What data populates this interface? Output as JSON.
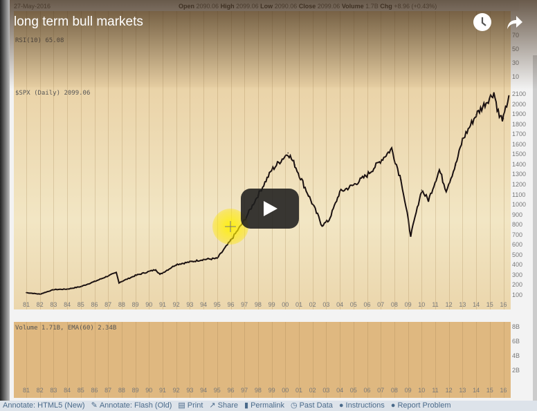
{
  "video": {
    "title": "long term bull markets",
    "icons": [
      "clock-icon",
      "share-icon",
      "play-icon"
    ]
  },
  "chart_header": {
    "date": "27-May-2016",
    "open_label": "Open",
    "open": "2090.06",
    "high_label": "High",
    "high": "2099.06",
    "low_label": "Low",
    "low": "2090.06",
    "close_label": "Close",
    "close": "2099.06",
    "volume_label": "Volume",
    "volume": "1.7B",
    "chg_label": "Chg",
    "chg": "+8.96 (+0.43%)"
  },
  "panels": {
    "rsi": "RSI(10) 65.08",
    "price": "$SPX (Daily) 2099.06",
    "volume": "Volume 1.71B, EMA(60) 2.34B"
  },
  "rsi_ticks": [
    "70",
    "50",
    "30",
    "10"
  ],
  "volume_ticks": [
    "8B",
    "6B",
    "4B",
    "2B"
  ],
  "chart_data": {
    "type": "line",
    "title": "$SPX (Daily) 2099.06",
    "x_ticks": [
      "81",
      "82",
      "83",
      "84",
      "85",
      "86",
      "87",
      "88",
      "89",
      "90",
      "91",
      "92",
      "93",
      "94",
      "95",
      "96",
      "97",
      "98",
      "99",
      "00",
      "01",
      "02",
      "03",
      "04",
      "05",
      "06",
      "07",
      "08",
      "09",
      "10",
      "11",
      "12",
      "13",
      "14",
      "15",
      "16"
    ],
    "y_ticks": [
      "2100",
      "2000",
      "1900",
      "1800",
      "1700",
      "1600",
      "1500",
      "1400",
      "1300",
      "1200",
      "1100",
      "1000",
      "900",
      "800",
      "700",
      "600",
      "500",
      "400",
      "300",
      "200",
      "100"
    ],
    "ylim": [
      100,
      2100
    ],
    "x": [
      1981,
      1982,
      1983,
      1984,
      1985,
      1986,
      1987.6,
      1987.8,
      1989,
      1990.5,
      1990.8,
      1992,
      1994,
      1995,
      1996,
      1997,
      1998,
      1999,
      2000.2,
      2000.7,
      2001.7,
      2002.7,
      2003.2,
      2004,
      2005,
      2006,
      2007.8,
      2008.5,
      2009.2,
      2010,
      2010.5,
      2011.3,
      2011.8,
      2012.5,
      2013,
      2014,
      2015.3,
      2015.7,
      2016,
      2016.4
    ],
    "values": [
      130,
      115,
      160,
      165,
      190,
      240,
      330,
      230,
      300,
      360,
      310,
      410,
      460,
      470,
      650,
      850,
      1100,
      1350,
      1520,
      1400,
      1100,
      800,
      850,
      1130,
      1200,
      1300,
      1560,
      1250,
      700,
      1150,
      1050,
      1350,
      1150,
      1400,
      1650,
      1900,
      2120,
      1880,
      1860,
      2090
    ],
    "grid": true,
    "color": "#1a1010"
  },
  "toolbar": {
    "items": [
      "Annotate: HTML5 (New)",
      "Annotate: Flash (Old)",
      "Print",
      "Share",
      "Permalink",
      "Past Data",
      "Instructions",
      "Report Problem"
    ]
  }
}
